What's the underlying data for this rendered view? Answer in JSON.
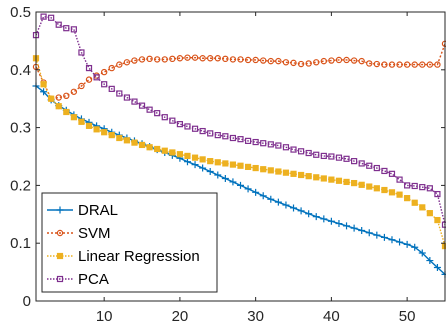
{
  "chart_data": {
    "type": "line",
    "title": "",
    "xlabel": "",
    "ylabel": "",
    "xlim": [
      1,
      55
    ],
    "ylim": [
      0,
      0.5
    ],
    "xticks": [
      10,
      20,
      30,
      40,
      50
    ],
    "yticks": [
      0,
      0.1,
      0.2,
      0.3,
      0.4,
      0.5
    ],
    "xtick_labels": [
      "10",
      "20",
      "30",
      "40",
      "50"
    ],
    "ytick_labels": [
      "0",
      "0.1",
      "0.2",
      "0.3",
      "0.4",
      "0.5"
    ],
    "grid": false,
    "legend_position": "bottom-left",
    "series": [
      {
        "name": "DRAL",
        "color": "#0072BD",
        "marker": "plus",
        "x": [
          1,
          2,
          3,
          4,
          5,
          6,
          7,
          8,
          9,
          10,
          11,
          12,
          13,
          14,
          15,
          16,
          17,
          18,
          19,
          20,
          21,
          22,
          23,
          24,
          25,
          26,
          27,
          28,
          29,
          30,
          31,
          32,
          33,
          34,
          35,
          36,
          37,
          38,
          39,
          40,
          41,
          42,
          43,
          44,
          45,
          46,
          47,
          48,
          49,
          50,
          51,
          52,
          53,
          54,
          55
        ],
        "values": [
          0.372,
          0.362,
          0.348,
          0.338,
          0.33,
          0.322,
          0.315,
          0.309,
          0.303,
          0.298,
          0.292,
          0.287,
          0.282,
          0.277,
          0.272,
          0.267,
          0.262,
          0.257,
          0.252,
          0.247,
          0.241,
          0.236,
          0.23,
          0.224,
          0.218,
          0.212,
          0.206,
          0.2,
          0.194,
          0.188,
          0.182,
          0.176,
          0.171,
          0.166,
          0.161,
          0.156,
          0.151,
          0.146,
          0.142,
          0.138,
          0.134,
          0.13,
          0.126,
          0.122,
          0.118,
          0.114,
          0.11,
          0.106,
          0.102,
          0.098,
          0.093,
          0.083,
          0.07,
          0.058,
          0.046
        ]
      },
      {
        "name": "SVM",
        "color": "#D95319",
        "marker": "circle",
        "x": [
          1,
          2,
          3,
          4,
          5,
          6,
          7,
          8,
          9,
          10,
          11,
          12,
          13,
          14,
          15,
          16,
          17,
          18,
          19,
          20,
          21,
          22,
          23,
          24,
          25,
          26,
          27,
          28,
          29,
          30,
          31,
          32,
          33,
          34,
          35,
          36,
          37,
          38,
          39,
          40,
          41,
          42,
          43,
          44,
          45,
          46,
          47,
          48,
          49,
          50,
          51,
          52,
          53,
          54,
          55
        ],
        "values": [
          0.405,
          0.378,
          0.35,
          0.352,
          0.355,
          0.362,
          0.372,
          0.383,
          0.39,
          0.396,
          0.403,
          0.409,
          0.413,
          0.416,
          0.418,
          0.419,
          0.418,
          0.418,
          0.419,
          0.42,
          0.421,
          0.421,
          0.42,
          0.42,
          0.42,
          0.419,
          0.418,
          0.418,
          0.417,
          0.417,
          0.416,
          0.415,
          0.415,
          0.413,
          0.412,
          0.41,
          0.411,
          0.413,
          0.415,
          0.416,
          0.417,
          0.417,
          0.416,
          0.415,
          0.411,
          0.41,
          0.409,
          0.409,
          0.409,
          0.409,
          0.409,
          0.409,
          0.409,
          0.409,
          0.445
        ]
      },
      {
        "name": "Linear Regression",
        "color": "#EDB120",
        "marker": "square",
        "x": [
          1,
          2,
          3,
          4,
          5,
          6,
          7,
          8,
          9,
          10,
          11,
          12,
          13,
          14,
          15,
          16,
          17,
          18,
          19,
          20,
          21,
          22,
          23,
          24,
          25,
          26,
          27,
          28,
          29,
          30,
          31,
          32,
          33,
          34,
          35,
          36,
          37,
          38,
          39,
          40,
          41,
          42,
          43,
          44,
          45,
          46,
          47,
          48,
          49,
          50,
          51,
          52,
          53,
          54,
          55
        ],
        "values": [
          0.42,
          0.375,
          0.35,
          0.337,
          0.327,
          0.318,
          0.31,
          0.303,
          0.297,
          0.292,
          0.287,
          0.282,
          0.278,
          0.274,
          0.27,
          0.266,
          0.263,
          0.26,
          0.257,
          0.254,
          0.251,
          0.248,
          0.245,
          0.242,
          0.24,
          0.238,
          0.236,
          0.234,
          0.232,
          0.23,
          0.228,
          0.226,
          0.224,
          0.222,
          0.22,
          0.218,
          0.216,
          0.214,
          0.212,
          0.21,
          0.208,
          0.206,
          0.204,
          0.201,
          0.198,
          0.195,
          0.192,
          0.188,
          0.184,
          0.178,
          0.17,
          0.162,
          0.152,
          0.14,
          0.095
        ]
      },
      {
        "name": "PCA",
        "color": "#7E2F8E",
        "marker": "square",
        "x": [
          1,
          2,
          3,
          4,
          5,
          6,
          7,
          8,
          9,
          10,
          11,
          12,
          13,
          14,
          15,
          16,
          17,
          18,
          19,
          20,
          21,
          22,
          23,
          24,
          25,
          26,
          27,
          28,
          29,
          30,
          31,
          32,
          33,
          34,
          35,
          36,
          37,
          38,
          39,
          40,
          41,
          42,
          43,
          44,
          45,
          46,
          47,
          48,
          49,
          50,
          51,
          52,
          53,
          54,
          55
        ],
        "values": [
          0.46,
          0.492,
          0.49,
          0.478,
          0.472,
          0.47,
          0.43,
          0.403,
          0.387,
          0.375,
          0.367,
          0.359,
          0.352,
          0.345,
          0.338,
          0.331,
          0.325,
          0.318,
          0.312,
          0.306,
          0.302,
          0.298,
          0.294,
          0.29,
          0.287,
          0.285,
          0.282,
          0.28,
          0.277,
          0.275,
          0.273,
          0.271,
          0.269,
          0.266,
          0.262,
          0.259,
          0.256,
          0.253,
          0.251,
          0.25,
          0.248,
          0.246,
          0.242,
          0.238,
          0.234,
          0.23,
          0.225,
          0.22,
          0.21,
          0.2,
          0.199,
          0.197,
          0.195,
          0.185,
          0.132
        ]
      }
    ]
  }
}
